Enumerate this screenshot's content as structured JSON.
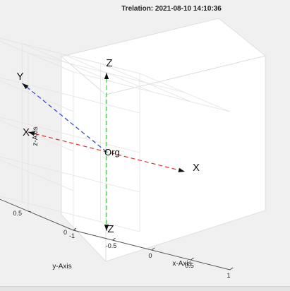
{
  "chart_data": {
    "type": "scatter",
    "projection": "3d",
    "title": "Trelation: 2021-08-10 14:10:36",
    "xlabel": "x-Axis",
    "ylabel": "y-Axis",
    "zlabel": "z-Axis",
    "xlim": [
      -1,
      1
    ],
    "ylim": [
      0,
      1
    ],
    "zlim": [
      -1,
      1
    ],
    "xticks": [
      "-1",
      "-0.5",
      "0",
      "0.5",
      "1"
    ],
    "yticks": [
      "0",
      "0.5",
      "1"
    ],
    "zticks": [
      "-1",
      "-0.5",
      "0",
      "0.5",
      "1"
    ],
    "grid": true,
    "origin_label": "Org",
    "axes_lines": [
      {
        "name": "X",
        "color": "#e03030",
        "from": [
          -1,
          0.5,
          0
        ],
        "to": [
          1,
          0.5,
          0
        ],
        "end_labels": [
          "X",
          "X"
        ]
      },
      {
        "name": "Y",
        "color": "#2b3fd6",
        "from": [
          0,
          0.5,
          0
        ],
        "to": [
          -0.5,
          1,
          0.5
        ],
        "end_labels": [
          "Y"
        ]
      },
      {
        "name": "Z",
        "color": "#33d133",
        "from": [
          0,
          0.5,
          -1
        ],
        "to": [
          0,
          0.5,
          1
        ],
        "end_labels": [
          "Z",
          "Z"
        ]
      }
    ]
  }
}
